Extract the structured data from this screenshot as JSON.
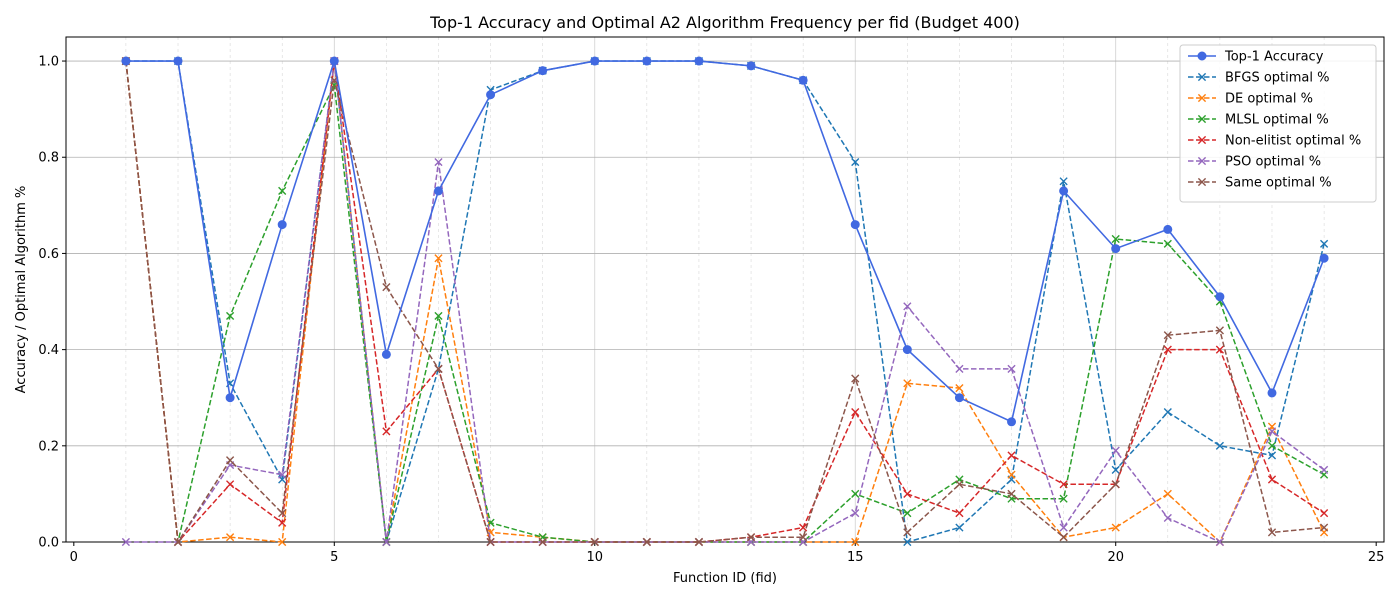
{
  "chart_data": {
    "type": "line",
    "title": "Top-1 Accuracy and Optimal A2 Algorithm Frequency per fid (Budget 400)",
    "xlabel": "Function ID (fid)",
    "ylabel": "Accuracy / Optimal Algorithm %",
    "xlim": [
      -0.15,
      25.15
    ],
    "ylim": [
      0,
      1.05
    ],
    "xticks": [
      0,
      5,
      10,
      15,
      20,
      25
    ],
    "yticks": [
      0.0,
      0.2,
      0.4,
      0.6,
      0.8,
      1.0
    ],
    "grid": true,
    "legend_position": "top-right",
    "x": [
      1,
      2,
      3,
      4,
      5,
      6,
      7,
      8,
      9,
      10,
      11,
      12,
      13,
      14,
      15,
      16,
      17,
      18,
      19,
      20,
      21,
      22,
      23,
      24
    ],
    "series": [
      {
        "name": "Top-1 Accuracy",
        "color": "#4169e1",
        "style": "solid",
        "marker": "circle",
        "values": [
          1.0,
          1.0,
          0.3,
          0.66,
          1.0,
          0.39,
          0.73,
          0.93,
          0.98,
          1.0,
          1.0,
          1.0,
          0.99,
          0.96,
          0.66,
          0.4,
          0.3,
          0.25,
          0.73,
          0.61,
          0.65,
          0.51,
          0.31,
          0.59
        ]
      },
      {
        "name": "BFGS optimal %",
        "color": "#1f77b4",
        "style": "dashed",
        "marker": "x",
        "values": [
          1.0,
          1.0,
          0.33,
          0.13,
          1.0,
          0.0,
          0.36,
          0.94,
          0.98,
          1.0,
          1.0,
          1.0,
          0.99,
          0.96,
          0.79,
          0.0,
          0.03,
          0.13,
          0.75,
          0.15,
          0.27,
          0.2,
          0.18,
          0.62
        ]
      },
      {
        "name": "DE optimal %",
        "color": "#ff7f0e",
        "style": "dashed",
        "marker": "x",
        "values": [
          1.0,
          0.0,
          0.01,
          0.0,
          1.0,
          0.0,
          0.59,
          0.02,
          0.01,
          0.0,
          0.0,
          0.0,
          0.0,
          0.0,
          0.0,
          0.33,
          0.32,
          0.14,
          0.01,
          0.03,
          0.1,
          0.0,
          0.24,
          0.02
        ]
      },
      {
        "name": "MLSL optimal %",
        "color": "#2ca02c",
        "style": "dashed",
        "marker": "x",
        "values": [
          1.0,
          0.0,
          0.47,
          0.73,
          0.95,
          0.0,
          0.47,
          0.04,
          0.01,
          0.0,
          0.0,
          0.0,
          0.0,
          0.0,
          0.1,
          0.06,
          0.13,
          0.09,
          0.09,
          0.63,
          0.62,
          0.5,
          0.2,
          0.14
        ]
      },
      {
        "name": "Non-elitist optimal %",
        "color": "#d62728",
        "style": "dashed",
        "marker": "x",
        "values": [
          1.0,
          0.0,
          0.12,
          0.04,
          1.0,
          0.23,
          0.36,
          0.0,
          0.0,
          0.0,
          0.0,
          0.0,
          0.01,
          0.03,
          0.27,
          0.1,
          0.06,
          0.18,
          0.12,
          0.12,
          0.4,
          0.4,
          0.13,
          0.06
        ]
      },
      {
        "name": "PSO optimal %",
        "color": "#9467bd",
        "style": "dashed",
        "marker": "x",
        "values": [
          0.0,
          0.0,
          0.16,
          0.14,
          1.0,
          0.0,
          0.79,
          0.0,
          0.0,
          0.0,
          0.0,
          0.0,
          0.0,
          0.0,
          0.06,
          0.49,
          0.36,
          0.36,
          0.03,
          0.19,
          0.05,
          0.0,
          0.23,
          0.15
        ]
      },
      {
        "name": "Same optimal %",
        "color": "#8c564b",
        "style": "dashed",
        "marker": "x",
        "values": [
          1.0,
          0.0,
          0.17,
          0.06,
          0.96,
          0.53,
          0.36,
          0.0,
          0.0,
          0.0,
          0.0,
          0.0,
          0.01,
          0.01,
          0.34,
          0.02,
          0.12,
          0.1,
          0.01,
          0.12,
          0.43,
          0.44,
          0.02,
          0.03
        ]
      }
    ]
  }
}
